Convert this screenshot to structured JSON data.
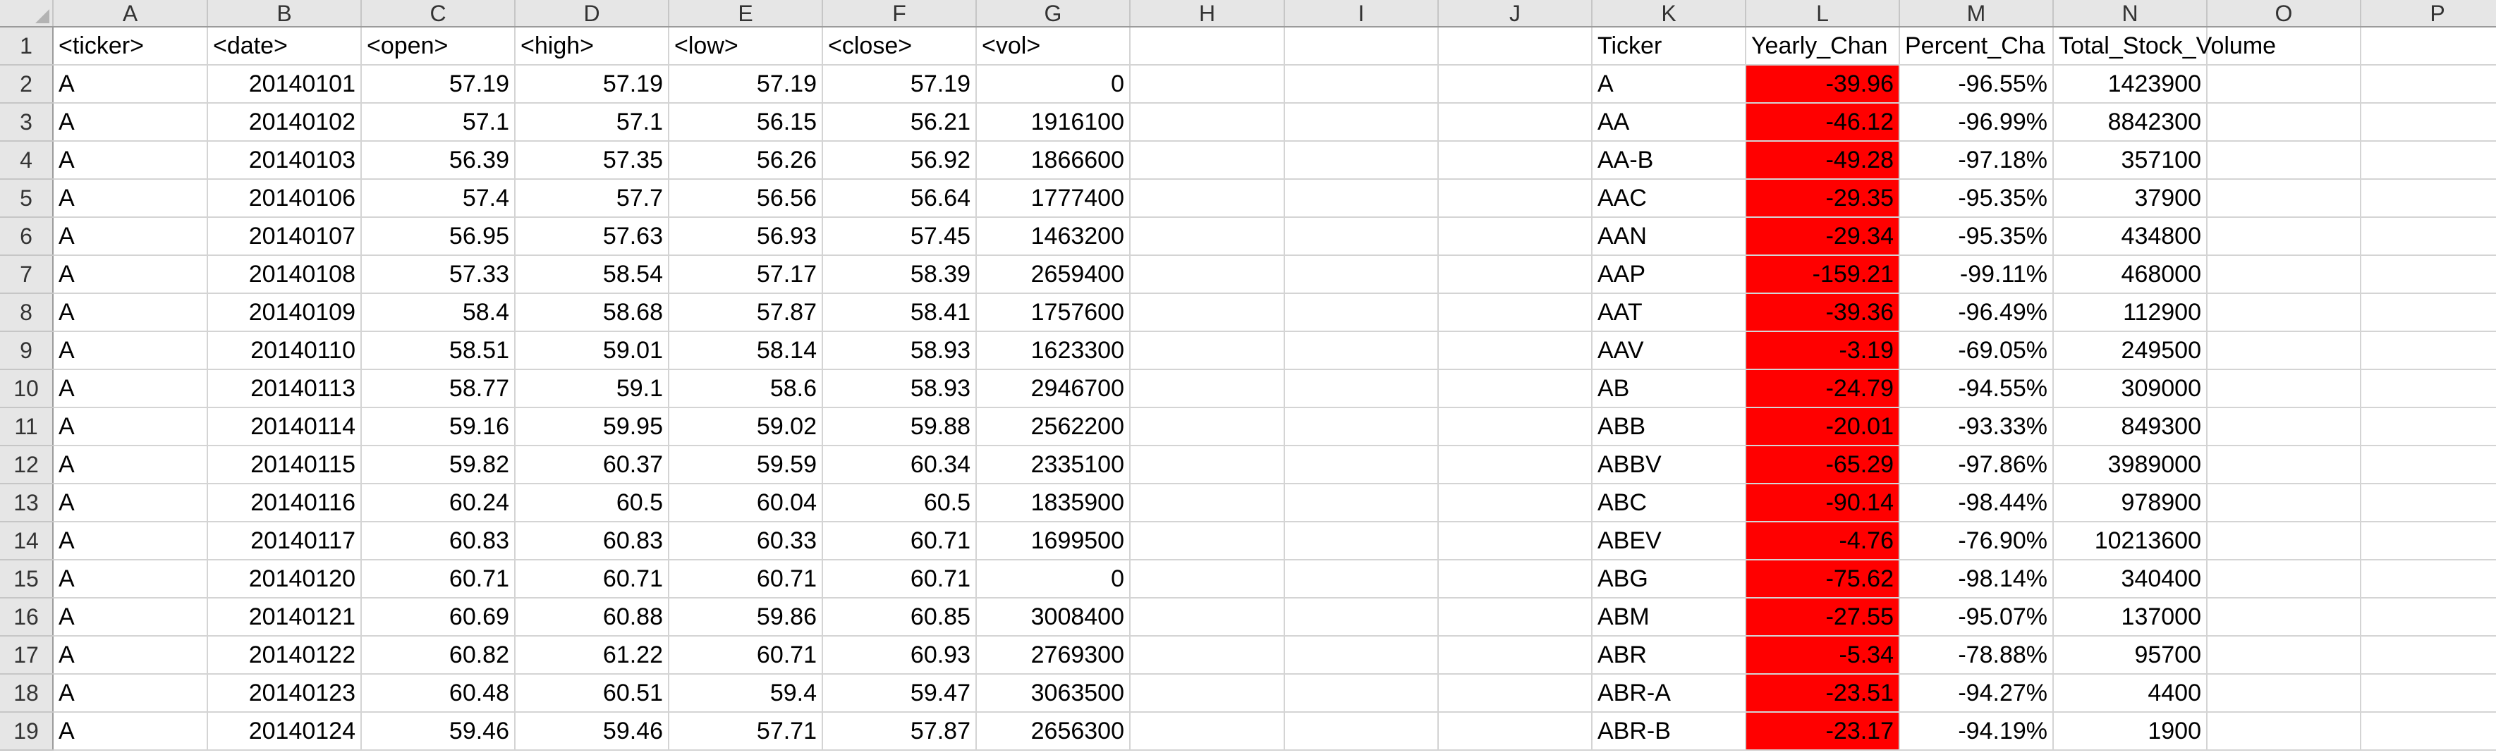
{
  "columns": [
    "A",
    "B",
    "C",
    "D",
    "E",
    "F",
    "G",
    "H",
    "I",
    "J",
    "K",
    "L",
    "M",
    "N",
    "O",
    "P"
  ],
  "colors": {
    "negative_fill": "#ff0000",
    "header_bg": "#e6e6e6",
    "grid": "#d4d4d4"
  },
  "rows": [
    [
      "1",
      "<ticker>",
      "<date>",
      "<open>",
      "<high>",
      "<low>",
      "<close>",
      "<vol>",
      "",
      "",
      "",
      "Ticker",
      "Yearly_Chan",
      "Percent_Cha",
      "Total_Stock_Volume",
      "",
      ""
    ],
    [
      "2",
      "A",
      "20140101",
      "57.19",
      "57.19",
      "57.19",
      "57.19",
      "0",
      "",
      "",
      "",
      "A",
      "-39.96",
      "-96.55%",
      "1423900",
      "",
      ""
    ],
    [
      "3",
      "A",
      "20140102",
      "57.1",
      "57.1",
      "56.15",
      "56.21",
      "1916100",
      "",
      "",
      "",
      "AA",
      "-46.12",
      "-96.99%",
      "8842300",
      "",
      ""
    ],
    [
      "4",
      "A",
      "20140103",
      "56.39",
      "57.35",
      "56.26",
      "56.92",
      "1866600",
      "",
      "",
      "",
      "AA-B",
      "-49.28",
      "-97.18%",
      "357100",
      "",
      ""
    ],
    [
      "5",
      "A",
      "20140106",
      "57.4",
      "57.7",
      "56.56",
      "56.64",
      "1777400",
      "",
      "",
      "",
      "AAC",
      "-29.35",
      "-95.35%",
      "37900",
      "",
      ""
    ],
    [
      "6",
      "A",
      "20140107",
      "56.95",
      "57.63",
      "56.93",
      "57.45",
      "1463200",
      "",
      "",
      "",
      "AAN",
      "-29.34",
      "-95.35%",
      "434800",
      "",
      ""
    ],
    [
      "7",
      "A",
      "20140108",
      "57.33",
      "58.54",
      "57.17",
      "58.39",
      "2659400",
      "",
      "",
      "",
      "AAP",
      "-159.21",
      "-99.11%",
      "468000",
      "",
      ""
    ],
    [
      "8",
      "A",
      "20140109",
      "58.4",
      "58.68",
      "57.87",
      "58.41",
      "1757600",
      "",
      "",
      "",
      "AAT",
      "-39.36",
      "-96.49%",
      "112900",
      "",
      ""
    ],
    [
      "9",
      "A",
      "20140110",
      "58.51",
      "59.01",
      "58.14",
      "58.93",
      "1623300",
      "",
      "",
      "",
      "AAV",
      "-3.19",
      "-69.05%",
      "249500",
      "",
      ""
    ],
    [
      "10",
      "A",
      "20140113",
      "58.77",
      "59.1",
      "58.6",
      "58.93",
      "2946700",
      "",
      "",
      "",
      "AB",
      "-24.79",
      "-94.55%",
      "309000",
      "",
      ""
    ],
    [
      "11",
      "A",
      "20140114",
      "59.16",
      "59.95",
      "59.02",
      "59.88",
      "2562200",
      "",
      "",
      "",
      "ABB",
      "-20.01",
      "-93.33%",
      "849300",
      "",
      ""
    ],
    [
      "12",
      "A",
      "20140115",
      "59.82",
      "60.37",
      "59.59",
      "60.34",
      "2335100",
      "",
      "",
      "",
      "ABBV",
      "-65.29",
      "-97.86%",
      "3989000",
      "",
      ""
    ],
    [
      "13",
      "A",
      "20140116",
      "60.24",
      "60.5",
      "60.04",
      "60.5",
      "1835900",
      "",
      "",
      "",
      "ABC",
      "-90.14",
      "-98.44%",
      "978900",
      "",
      ""
    ],
    [
      "14",
      "A",
      "20140117",
      "60.83",
      "60.83",
      "60.33",
      "60.71",
      "1699500",
      "",
      "",
      "",
      "ABEV",
      "-4.76",
      "-76.90%",
      "10213600",
      "",
      ""
    ],
    [
      "15",
      "A",
      "20140120",
      "60.71",
      "60.71",
      "60.71",
      "60.71",
      "0",
      "",
      "",
      "",
      "ABG",
      "-75.62",
      "-98.14%",
      "340400",
      "",
      ""
    ],
    [
      "16",
      "A",
      "20140121",
      "60.69",
      "60.88",
      "59.86",
      "60.85",
      "3008400",
      "",
      "",
      "",
      "ABM",
      "-27.55",
      "-95.07%",
      "137000",
      "",
      ""
    ],
    [
      "17",
      "A",
      "20140122",
      "60.82",
      "61.22",
      "60.71",
      "60.93",
      "2769300",
      "",
      "",
      "",
      "ABR",
      "-5.34",
      "-78.88%",
      "95700",
      "",
      ""
    ],
    [
      "18",
      "A",
      "20140123",
      "60.48",
      "60.51",
      "59.4",
      "59.47",
      "3063500",
      "",
      "",
      "",
      "ABR-A",
      "-23.51",
      "-94.27%",
      "4400",
      "",
      ""
    ],
    [
      "19",
      "A",
      "20140124",
      "59.46",
      "59.46",
      "57.71",
      "57.87",
      "2656300",
      "",
      "",
      "",
      "ABR-B",
      "-23.17",
      "-94.19%",
      "1900",
      "",
      ""
    ]
  ]
}
